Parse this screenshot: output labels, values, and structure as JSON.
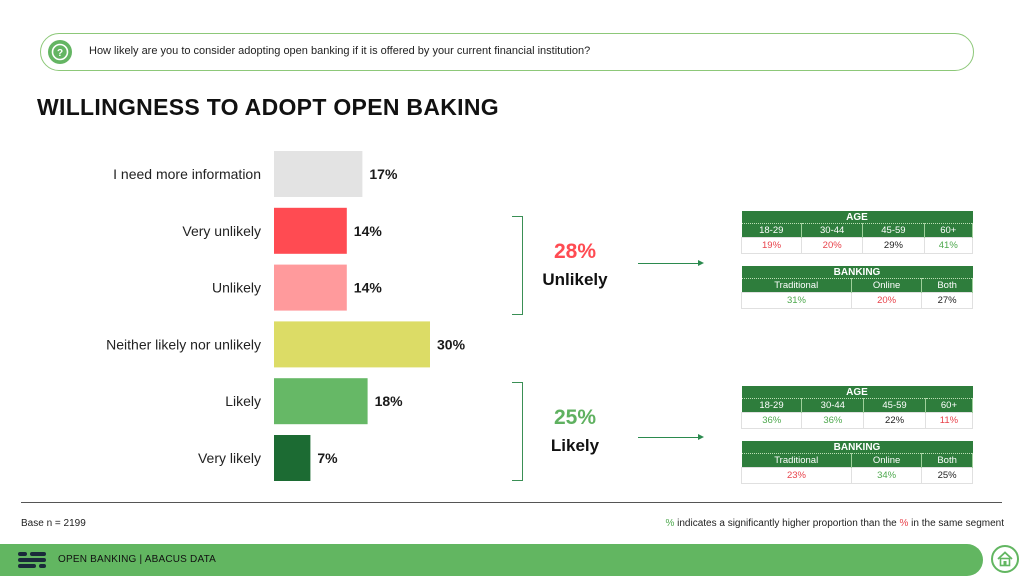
{
  "question": "How likely are you to consider adopting open banking if it is offered by your current financial institution?",
  "title": "WILLINGNESS TO ADOPT OPEN BAKING",
  "chart_data": {
    "type": "bar",
    "orientation": "horizontal",
    "categories": [
      "I need more information",
      "Very unlikely",
      "Unlikely",
      "Neither likely nor unlikely",
      "Likely",
      "Very likely"
    ],
    "values": [
      17,
      14,
      14,
      30,
      18,
      7
    ],
    "value_labels": [
      "17%",
      "14%",
      "14%",
      "30%",
      "18%",
      "7%"
    ],
    "colors": [
      "#e3e3e3",
      "#ff4b52",
      "#ff9a9c",
      "#dcdc66",
      "#66b866",
      "#1c6b33"
    ],
    "xlim": [
      0,
      30
    ]
  },
  "summaries": [
    {
      "pct": "28%",
      "label": "Unlikely",
      "color": "#ff4b52",
      "age": {
        "header": "AGE",
        "cols": [
          "18-29",
          "30-44",
          "45-59",
          "60+"
        ],
        "vals": [
          "19%",
          "20%",
          "29%",
          "41%"
        ],
        "val_colors": [
          "#e8434b",
          "#e8434b",
          "#222222",
          "#4ea94e"
        ]
      },
      "banking": {
        "header": "BANKING",
        "cols": [
          "Traditional",
          "Online",
          "Both"
        ],
        "vals": [
          "31%",
          "20%",
          "27%"
        ],
        "val_colors": [
          "#4ea94e",
          "#e8434b",
          "#222222"
        ]
      }
    },
    {
      "pct": "25%",
      "label": "Likely",
      "color": "#5fb160",
      "age": {
        "header": "AGE",
        "cols": [
          "18-29",
          "30-44",
          "45-59",
          "60+"
        ],
        "vals": [
          "36%",
          "36%",
          "22%",
          "11%"
        ],
        "val_colors": [
          "#4ea94e",
          "#4ea94e",
          "#222222",
          "#e8434b"
        ]
      },
      "banking": {
        "header": "BANKING",
        "cols": [
          "Traditional",
          "Online",
          "Both"
        ],
        "vals": [
          "23%",
          "34%",
          "25%"
        ],
        "val_colors": [
          "#e8434b",
          "#4ea94e",
          "#222222"
        ]
      }
    }
  ],
  "base": "Base n = 2199",
  "note": {
    "p1": "%",
    "p2": " indicates a significantly higher proportion than the ",
    "p3": "%",
    "p4": " in the same segment",
    "c1": "#4ea94e",
    "c3": "#e8434b"
  },
  "footer": {
    "text": "OPEN BANKING  |  ABACUS DATA",
    "home_icon": "home-icon"
  }
}
